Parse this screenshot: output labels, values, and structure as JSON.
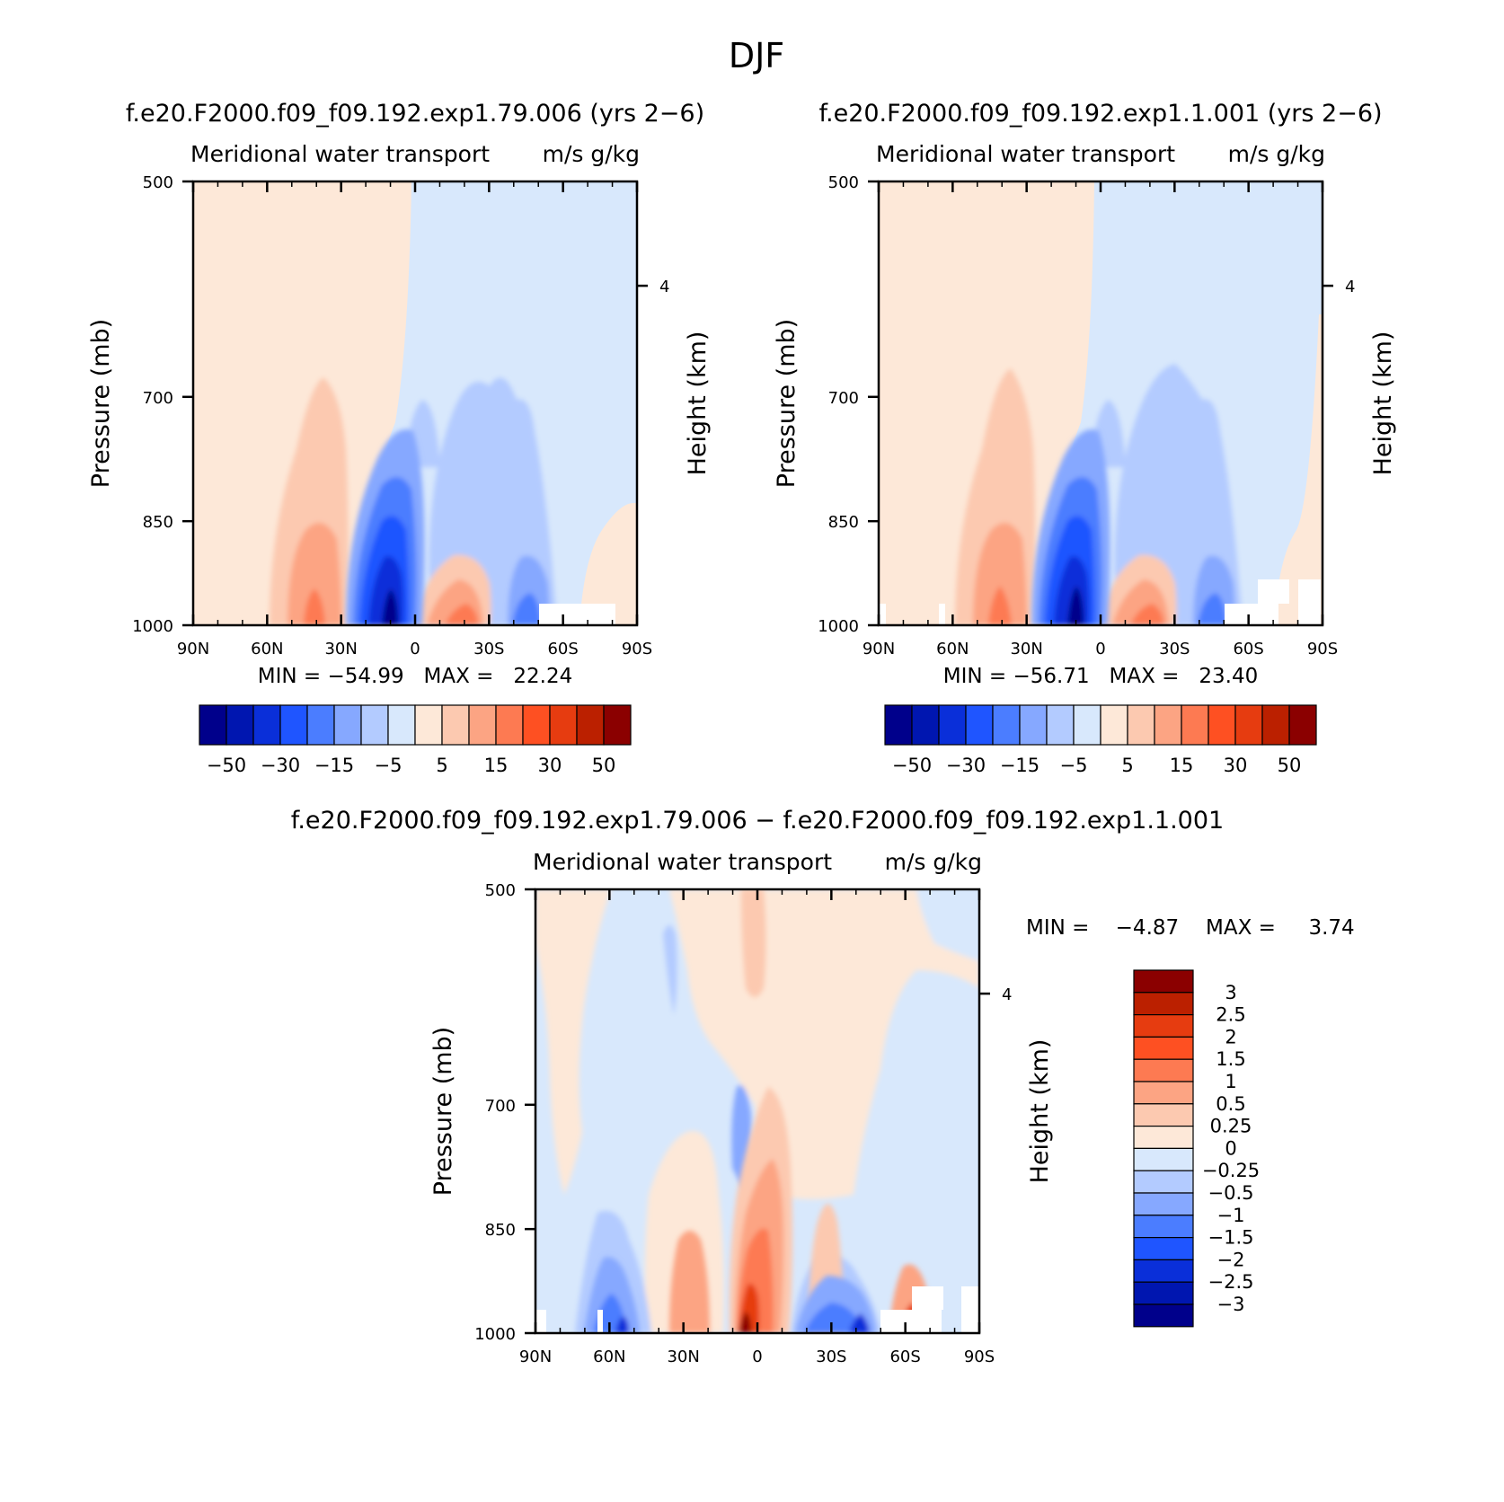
{
  "main_title": "DJF",
  "chart_data": [
    {
      "type": "heatmap",
      "id": "left",
      "title": "f.e20.F2000.f09_f09.192.exp1.79.006 (yrs 2−6)",
      "subtitle": "Meridional water transport",
      "units": "m/s g/kg",
      "ylabel": "Pressure (mb)",
      "ylabel_right": "Height (km)",
      "x_ticks": [
        "90N",
        "60N",
        "30N",
        "0",
        "30S",
        "60S",
        "90S"
      ],
      "y_ticks": [
        "500",
        "700",
        "850",
        "1000"
      ],
      "y_ticks_right": [
        "4"
      ],
      "ylim": [
        1000,
        500
      ],
      "stats": "MIN = −54.99   MAX =   22.24",
      "colorbar_labels": [
        "−50",
        "−30",
        "−15",
        "−5",
        "5",
        "15",
        "30",
        "50"
      ],
      "features": [
        {
          "latitude": 40,
          "pressure": 980,
          "value": 20
        },
        {
          "latitude": 10,
          "pressure": 990,
          "value": -55
        },
        {
          "latitude": -20,
          "pressure": 990,
          "value": 15
        },
        {
          "latitude": -45,
          "pressure": 990,
          "value": -15
        }
      ]
    },
    {
      "type": "heatmap",
      "id": "right",
      "title": "f.e20.F2000.f09_f09.192.exp1.1.001 (yrs 2−6)",
      "subtitle": "Meridional water transport",
      "units": "m/s g/kg",
      "ylabel": "Pressure (mb)",
      "ylabel_right": "Height (km)",
      "x_ticks": [
        "90N",
        "60N",
        "30N",
        "0",
        "30S",
        "60S",
        "90S"
      ],
      "y_ticks": [
        "500",
        "700",
        "850",
        "1000"
      ],
      "y_ticks_right": [
        "4"
      ],
      "ylim": [
        1000,
        500
      ],
      "stats": "MIN = −56.71   MAX =   23.40",
      "colorbar_labels": [
        "−50",
        "−30",
        "−15",
        "−5",
        "5",
        "15",
        "30",
        "50"
      ],
      "features": [
        {
          "latitude": 40,
          "pressure": 980,
          "value": 21
        },
        {
          "latitude": 10,
          "pressure": 990,
          "value": -57
        },
        {
          "latitude": -20,
          "pressure": 990,
          "value": 16
        },
        {
          "latitude": -45,
          "pressure": 990,
          "value": -15
        }
      ]
    },
    {
      "type": "heatmap",
      "id": "diff",
      "title": "f.e20.F2000.f09_f09.192.exp1.79.006 − f.e20.F2000.f09_f09.192.exp1.1.001",
      "subtitle": "Meridional water transport",
      "units": "m/s g/kg",
      "ylabel": "Pressure (mb)",
      "ylabel_right": "Height (km)",
      "x_ticks": [
        "90N",
        "60N",
        "30N",
        "0",
        "30S",
        "60S",
        "90S"
      ],
      "y_ticks": [
        "500",
        "700",
        "850",
        "1000"
      ],
      "y_ticks_right": [
        "4"
      ],
      "ylim": [
        1000,
        500
      ],
      "stats_min": "MIN =    −4.87",
      "stats_max": "MAX =     3.74",
      "colorbar_labels": [
        "3",
        "2.5",
        "2",
        "1.5",
        "1",
        "0.5",
        "0.25",
        "0",
        "−0.25",
        "−0.5",
        "−1",
        "−1.5",
        "−2",
        "−2.5",
        "−3"
      ],
      "features": [
        {
          "latitude": 5,
          "pressure": 980,
          "value": 3.7
        },
        {
          "latitude": -60,
          "pressure": 990,
          "value": 3
        },
        {
          "latitude": 55,
          "pressure": 990,
          "value": -2
        },
        {
          "latitude": -45,
          "pressure": 990,
          "value": -3
        }
      ]
    }
  ],
  "colors": {
    "diverging": [
      "#00008b",
      "#0016b0",
      "#0a2fd9",
      "#1f55ff",
      "#4b7dff",
      "#86a8ff",
      "#b3cbff",
      "#d8e8fc",
      "#fde8d8",
      "#fcc9b0",
      "#fca483",
      "#fd7a52",
      "#fe5022",
      "#e63c10",
      "#bb2000",
      "#8b0000"
    ]
  }
}
